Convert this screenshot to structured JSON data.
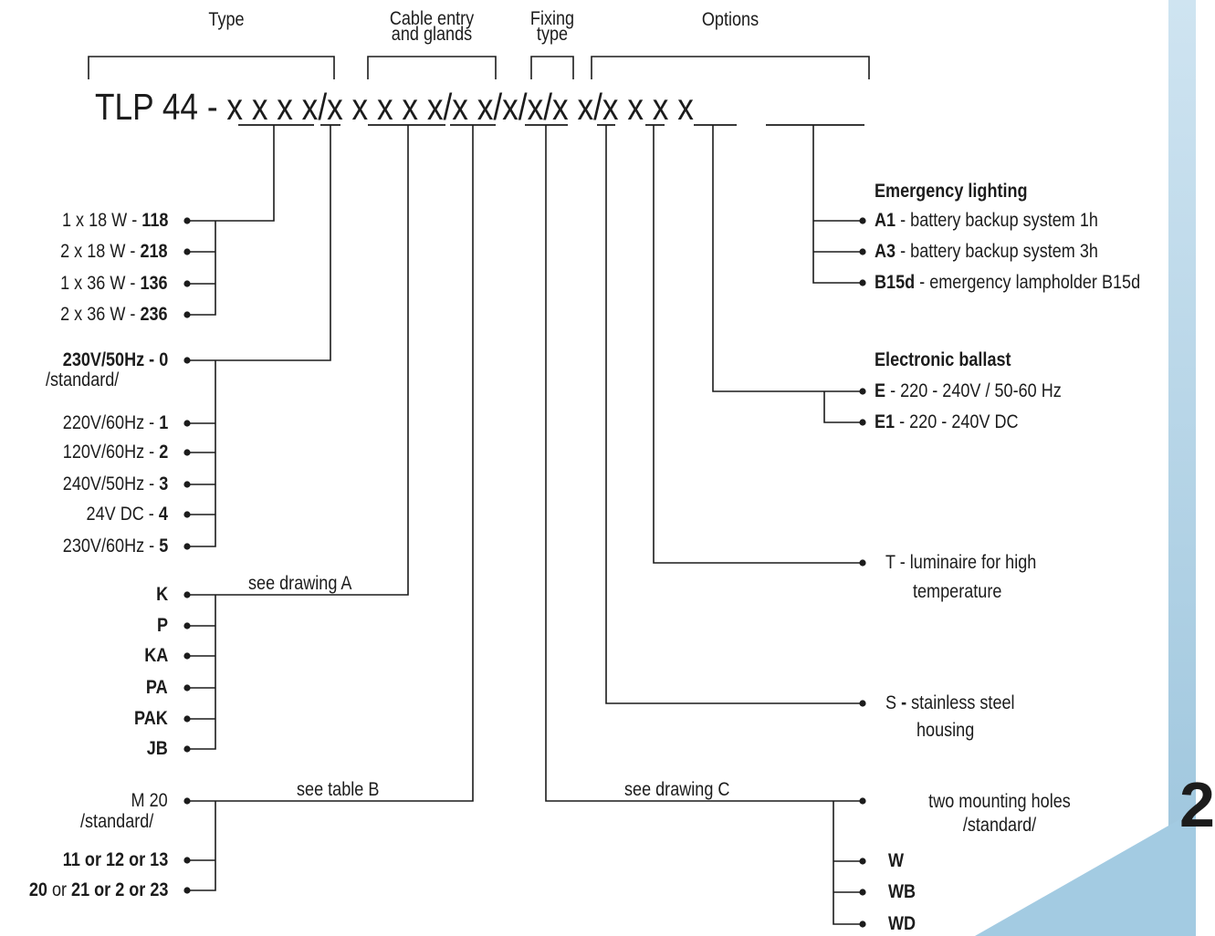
{
  "headers": {
    "type": "Type",
    "cable_entry": [
      "Cable entry",
      "and glands"
    ],
    "fixing_type": [
      "Fixing",
      "type"
    ],
    "options": "Options"
  },
  "code": {
    "prefix": "TLP 44 -",
    "groups": [
      "x x x x",
      "x x x x x",
      "x x",
      "x",
      "x",
      "x x",
      "x x x x"
    ],
    "separator": "/"
  },
  "power_rating": [
    {
      "label": "1 x 18 W - ",
      "code": "118"
    },
    {
      "label": "2 x 18 W - ",
      "code": "218"
    },
    {
      "label": "1 x 36 W - ",
      "code": "136"
    },
    {
      "label": "2 x 36 W - ",
      "code": "236"
    }
  ],
  "supply_voltage": {
    "standard": {
      "label": "230V/50Hz - ",
      "code": "0",
      "note": "/standard/"
    },
    "items": [
      {
        "label": "220V/60Hz - ",
        "code": "1"
      },
      {
        "label": "120V/60Hz - ",
        "code": "2"
      },
      {
        "label": "240V/50Hz - ",
        "code": "3"
      },
      {
        "label": "24V DC - ",
        "code": "4"
      },
      {
        "label": "230V/60Hz - ",
        "code": "5"
      }
    ]
  },
  "cable_entry": {
    "note": "see drawing A",
    "items": [
      "K",
      "P",
      "KA",
      "PA",
      "PAK",
      "JB"
    ]
  },
  "glands": {
    "note": "see table B",
    "standard": {
      "label": "M 20",
      "note": "/standard/"
    },
    "option1": "11 or 12 or 13",
    "option2": {
      "a": "20",
      "b": " or ",
      "c": "21 or 2 or 23"
    }
  },
  "fixing": {
    "note": "see drawing C",
    "standard": {
      "line1": "two mounting holes",
      "line2": "/standard/"
    },
    "items": [
      "W",
      "WB",
      "WD"
    ]
  },
  "options": {
    "stainless": {
      "code": "S",
      "sep": " - ",
      "line1": "stainless steel",
      "line2": "housing"
    },
    "high_temp": {
      "code": "T",
      "sep": " - ",
      "line1": "luminaire for high",
      "line2": "temperature"
    },
    "ballast": {
      "title": "Electronic ballast",
      "items": [
        {
          "code": "E",
          "desc": " - 220 - 240V / 50-60 Hz"
        },
        {
          "code": "E1",
          "desc": " - 220 - 240V DC"
        }
      ]
    },
    "emergency": {
      "title": "Emergency lighting",
      "items": [
        {
          "code": "A1",
          "desc": " - battery backup system 1h"
        },
        {
          "code": "A3",
          "desc": " - battery backup system 3h"
        },
        {
          "code": "B15d",
          "desc": " - emergency lampholder B15d"
        }
      ]
    }
  },
  "page_number": "2",
  "colors": {
    "ink": "#1c1c1c",
    "accent_blue": "#9bc4dc",
    "accent_light": "#cfe4f1"
  }
}
